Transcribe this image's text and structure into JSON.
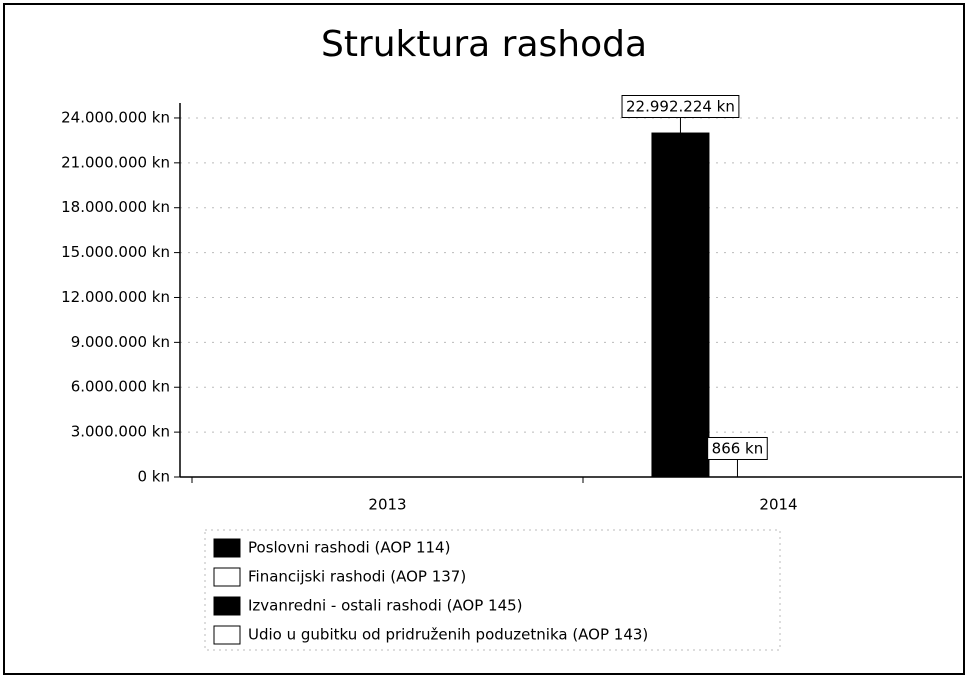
{
  "chart_data": {
    "type": "bar",
    "title": "Struktura rashoda",
    "categories": [
      "2013",
      "2014"
    ],
    "series": [
      {
        "name": "Poslovni rashodi (AOP 114)",
        "color": "#000000",
        "values": [
          0,
          22992224
        ],
        "value_labels": [
          null,
          "22.992.224 kn"
        ]
      },
      {
        "name": "Financijski rashodi (AOP 137)",
        "color": "#ffffff",
        "values": [
          0,
          866
        ],
        "value_labels": [
          null,
          "866 kn"
        ]
      },
      {
        "name": "Izvanredni - ostali rashodi (AOP 145)",
        "color": "#000000",
        "values": [
          0,
          0
        ]
      },
      {
        "name": "Udio u gubitku od pridruženih poduzetnika (AOP 143)",
        "color": "#ffffff",
        "values": [
          0,
          0
        ]
      }
    ],
    "ylim": [
      0,
      25000000
    ],
    "yticks": [
      {
        "value": 0,
        "label": "0 kn"
      },
      {
        "value": 3000000,
        "label": "3.000.000 kn"
      },
      {
        "value": 6000000,
        "label": "6.000.000 kn"
      },
      {
        "value": 9000000,
        "label": "9.000.000 kn"
      },
      {
        "value": 12000000,
        "label": "12.000.000 kn"
      },
      {
        "value": 15000000,
        "label": "15.000.000 kn"
      },
      {
        "value": 18000000,
        "label": "18.000.000 kn"
      },
      {
        "value": 21000000,
        "label": "21.000.000 kn"
      },
      {
        "value": 24000000,
        "label": "24.000.000 kn"
      }
    ],
    "grid": true
  }
}
